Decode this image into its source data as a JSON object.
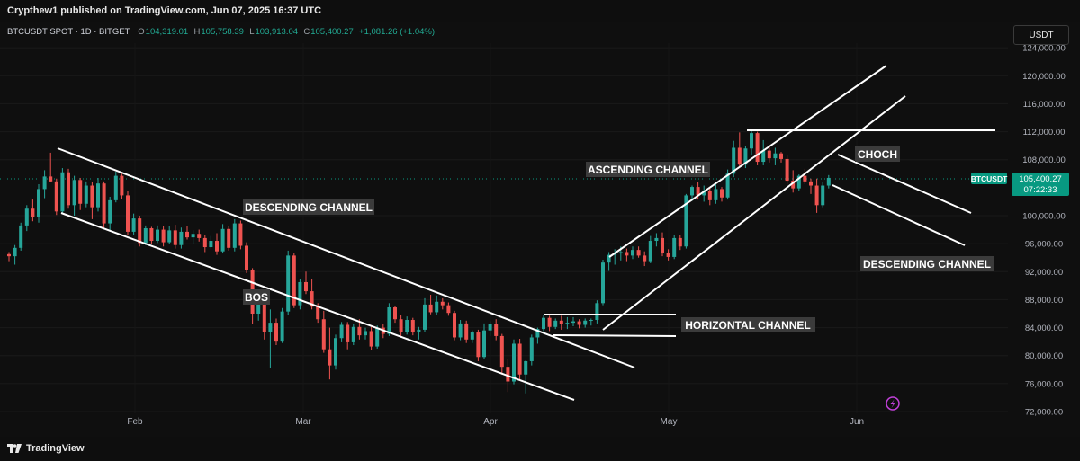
{
  "header": {
    "publisher": "Crypthew1 published on TradingView.com, Jun 07, 2025 16:37 UTC"
  },
  "symbol_bar": {
    "symbol": "BTCUSDT SPOT · 1D · BITGET",
    "open_label": "O",
    "open": "104,319.01",
    "high_label": "H",
    "high": "105,758.39",
    "low_label": "L",
    "low": "103,913.04",
    "close_label": "C",
    "close": "105,400.27",
    "change": "+1,081.26 (+1.04%)"
  },
  "currency_button": "USDT",
  "price_axis": {
    "ticks": [
      "124,000.00",
      "120,000.00",
      "116,000.00",
      "112,000.00",
      "108,000.00",
      "100,000.00",
      "96,000.00",
      "92,000.00",
      "88,000.00",
      "84,000.00",
      "80,000.00",
      "76,000.00",
      "72,000.00"
    ],
    "current_symbol": "BTCUSDT",
    "current_price": "105,400.27",
    "countdown": "07:22:33"
  },
  "time_axis": {
    "ticks": [
      "Feb",
      "Mar",
      "Apr",
      "May",
      "Jun"
    ]
  },
  "annotations": {
    "desc1": "DESCENDING CHANNEL",
    "bos": "BOS",
    "ascending": "ASCENDING CHANNEL",
    "horizontal": "HORIZONTAL CHANNEL",
    "choch": "CHOCH",
    "desc2": "DESCENDING CHANNEL"
  },
  "footer": {
    "brand": "TradingView"
  },
  "colors": {
    "up": "#26a69a",
    "down": "#ef5350",
    "background": "#0f0f0f",
    "accent": "#089981"
  },
  "chart_data": {
    "type": "candlestick",
    "title": "BTCUSDT SPOT · 1D · BITGET",
    "ylim": [
      72000,
      124000
    ],
    "x": [
      "Feb",
      "Mar",
      "Apr",
      "May",
      "Jun"
    ],
    "series": [
      {
        "name": "BTCUSDT",
        "values": [
          [
            94500,
            94800,
            93500,
            94200
          ],
          [
            94200,
            95800,
            93000,
            95400
          ],
          [
            95400,
            99000,
            95000,
            98600
          ],
          [
            98600,
            101500,
            97800,
            101000
          ],
          [
            101000,
            102300,
            99200,
            99800
          ],
          [
            99800,
            104500,
            99000,
            103800
          ],
          [
            103800,
            106500,
            102500,
            105600
          ],
          [
            105600,
            109000,
            104800,
            104900
          ],
          [
            104900,
            105300,
            100100,
            100600
          ],
          [
            100600,
            106800,
            100300,
            106200
          ],
          [
            106200,
            106700,
            101000,
            101500
          ],
          [
            101500,
            105700,
            100000,
            105100
          ],
          [
            105100,
            105400,
            100800,
            101700
          ],
          [
            101700,
            104900,
            101200,
            104300
          ],
          [
            104300,
            104800,
            99500,
            101200
          ],
          [
            101200,
            105400,
            100600,
            104600
          ],
          [
            104600,
            104900,
            98100,
            98900
          ],
          [
            98900,
            102700,
            97800,
            102200
          ],
          [
            102200,
            106300,
            101900,
            105700
          ],
          [
            105700,
            106000,
            102400,
            102900
          ],
          [
            102900,
            103600,
            97200,
            97700
          ],
          [
            97700,
            100300,
            97300,
            99600
          ],
          [
            99600,
            100000,
            95600,
            96100
          ],
          [
            96100,
            98600,
            95800,
            98200
          ],
          [
            98200,
            98400,
            95900,
            96400
          ],
          [
            96400,
            98600,
            96100,
            98000
          ],
          [
            98000,
            98500,
            95600,
            96200
          ],
          [
            96200,
            98500,
            95900,
            97900
          ],
          [
            97900,
            98700,
            95300,
            95800
          ],
          [
            95800,
            98300,
            95300,
            97700
          ],
          [
            97700,
            98500,
            96600,
            96900
          ],
          [
            96900,
            97900,
            95900,
            97400
          ],
          [
            97400,
            98000,
            96300,
            96800
          ],
          [
            96800,
            97300,
            94800,
            95500
          ],
          [
            95500,
            97100,
            95300,
            96400
          ],
          [
            96400,
            97500,
            94400,
            94900
          ],
          [
            94900,
            98800,
            94600,
            98100
          ],
          [
            98100,
            98500,
            95000,
            95400
          ],
          [
            95400,
            99500,
            94900,
            98900
          ],
          [
            98900,
            99300,
            95200,
            95700
          ],
          [
            95700,
            96200,
            91800,
            92200
          ],
          [
            92200,
            92500,
            84500,
            86000
          ],
          [
            86000,
            88500,
            85000,
            88200
          ],
          [
            88200,
            88600,
            82300,
            83400
          ],
          [
            83400,
            86600,
            78200,
            84700
          ],
          [
            84700,
            85300,
            81500,
            82000
          ],
          [
            82000,
            86800,
            81800,
            86300
          ],
          [
            86300,
            95000,
            85800,
            94300
          ],
          [
            94300,
            94700,
            86800,
            87200
          ],
          [
            87200,
            91000,
            86600,
            90500
          ],
          [
            90500,
            92000,
            88800,
            89200
          ],
          [
            89200,
            90900,
            86600,
            87000
          ],
          [
            87000,
            87500,
            84700,
            85200
          ],
          [
            85200,
            86400,
            80400,
            80900
          ],
          [
            80900,
            84000,
            76600,
            78600
          ],
          [
            78600,
            83000,
            78000,
            82500
          ],
          [
            82500,
            84800,
            81900,
            84400
          ],
          [
            84400,
            84800,
            80900,
            81900
          ],
          [
            81900,
            84500,
            81500,
            84100
          ],
          [
            84100,
            85200,
            82300,
            82900
          ],
          [
            82900,
            84000,
            82300,
            83500
          ],
          [
            83500,
            84100,
            80800,
            81300
          ],
          [
            81300,
            84300,
            81000,
            84000
          ],
          [
            84000,
            84500,
            82500,
            83100
          ],
          [
            83100,
            87500,
            82800,
            86900
          ],
          [
            86900,
            87100,
            84700,
            85200
          ],
          [
            85200,
            85800,
            82800,
            83300
          ],
          [
            83300,
            85600,
            83000,
            85100
          ],
          [
            85100,
            85400,
            82900,
            83300
          ],
          [
            83300,
            84100,
            82300,
            83700
          ],
          [
            83700,
            88200,
            83400,
            87300
          ],
          [
            87300,
            88700,
            85900,
            86200
          ],
          [
            86200,
            88600,
            85800,
            87700
          ],
          [
            87700,
            88200,
            86600,
            87200
          ],
          [
            87200,
            87600,
            85700,
            86100
          ],
          [
            86100,
            86400,
            82200,
            82600
          ],
          [
            82600,
            85100,
            82200,
            84600
          ],
          [
            84600,
            85000,
            81800,
            82300
          ],
          [
            82300,
            83600,
            81800,
            83300
          ],
          [
            83300,
            83700,
            79200,
            79800
          ],
          [
            79800,
            84600,
            79500,
            83600
          ],
          [
            83600,
            84900,
            82800,
            84500
          ],
          [
            84500,
            85200,
            82200,
            82800
          ],
          [
            82800,
            83100,
            77300,
            78400
          ],
          [
            78400,
            79500,
            74800,
            76300
          ],
          [
            76300,
            82300,
            75900,
            81700
          ],
          [
            81700,
            82400,
            76500,
            77300
          ],
          [
            77300,
            79300,
            74600,
            79200
          ],
          [
            79200,
            83000,
            78600,
            82600
          ],
          [
            82600,
            84000,
            81700,
            83800
          ],
          [
            83800,
            85800,
            83500,
            85400
          ],
          [
            85400,
            85700,
            83500,
            84100
          ],
          [
            84100,
            85300,
            83800,
            85000
          ],
          [
            85000,
            85700,
            83700,
            84500
          ],
          [
            84500,
            85500,
            83800,
            84700
          ],
          [
            84700,
            85500,
            84200,
            84900
          ],
          [
            84900,
            85200,
            83900,
            84400
          ],
          [
            84400,
            85300,
            84000,
            85000
          ],
          [
            85000,
            85300,
            84300,
            85100
          ],
          [
            85100,
            87900,
            84600,
            87500
          ],
          [
            87500,
            93700,
            87200,
            93300
          ],
          [
            93300,
            94800,
            92100,
            94400
          ],
          [
            94400,
            95200,
            93000,
            94600
          ],
          [
            94600,
            95600,
            93600,
            94800
          ],
          [
            94800,
            95300,
            93500,
            94300
          ],
          [
            94300,
            95600,
            93800,
            95100
          ],
          [
            95100,
            95600,
            94000,
            94300
          ],
          [
            94300,
            94900,
            92800,
            93500
          ],
          [
            93500,
            97100,
            93200,
            96400
          ],
          [
            96400,
            97500,
            95600,
            96800
          ],
          [
            96800,
            97600,
            94200,
            94700
          ],
          [
            94700,
            95200,
            93600,
            94100
          ],
          [
            94100,
            97300,
            93800,
            96800
          ],
          [
            96800,
            97300,
            95100,
            95600
          ],
          [
            95600,
            103100,
            95300,
            102900
          ],
          [
            102900,
            104300,
            102100,
            104100
          ],
          [
            104100,
            104800,
            102300,
            102900
          ],
          [
            102900,
            104300,
            102000,
            103600
          ],
          [
            103600,
            104100,
            101500,
            102200
          ],
          [
            102200,
            104500,
            101700,
            103800
          ],
          [
            103800,
            104100,
            102000,
            102600
          ],
          [
            102600,
            106600,
            102300,
            106000
          ],
          [
            106000,
            110700,
            105500,
            109700
          ],
          [
            109700,
            111900,
            106900,
            107300
          ],
          [
            107300,
            110000,
            106800,
            109600
          ],
          [
            109600,
            112300,
            108700,
            111800
          ],
          [
            111800,
            112000,
            107200,
            107700
          ],
          [
            107700,
            110800,
            107200,
            109300
          ],
          [
            109300,
            110000,
            107600,
            108200
          ],
          [
            108200,
            109700,
            107200,
            108900
          ],
          [
            108900,
            109100,
            107600,
            108100
          ],
          [
            108100,
            108600,
            104500,
            105000
          ],
          [
            105000,
            106500,
            103300,
            103900
          ],
          [
            103900,
            105900,
            103600,
            105700
          ],
          [
            105700,
            106700,
            104500,
            104900
          ],
          [
            104900,
            105300,
            103100,
            104300
          ],
          [
            104300,
            105300,
            100400,
            101500
          ],
          [
            101500,
            104800,
            101200,
            104300
          ],
          [
            104300,
            105800,
            103900,
            105400
          ]
        ]
      }
    ]
  }
}
